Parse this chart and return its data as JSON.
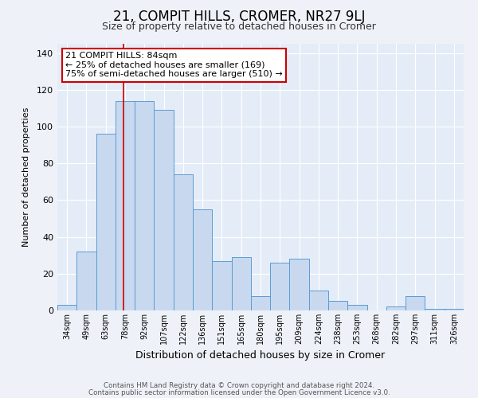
{
  "title": "21, COMPIT HILLS, CROMER, NR27 9LJ",
  "subtitle": "Size of property relative to detached houses in Cromer",
  "xlabel": "Distribution of detached houses by size in Cromer",
  "ylabel": "Number of detached properties",
  "bar_labels": [
    "34sqm",
    "49sqm",
    "63sqm",
    "78sqm",
    "92sqm",
    "107sqm",
    "122sqm",
    "136sqm",
    "151sqm",
    "165sqm",
    "180sqm",
    "195sqm",
    "209sqm",
    "224sqm",
    "238sqm",
    "253sqm",
    "268sqm",
    "282sqm",
    "297sqm",
    "311sqm",
    "326sqm"
  ],
  "bar_values": [
    3,
    32,
    96,
    114,
    114,
    109,
    74,
    55,
    27,
    29,
    8,
    26,
    28,
    11,
    5,
    3,
    0,
    2,
    8,
    1,
    1
  ],
  "bar_color": "#c8d9ef",
  "bar_edge_color": "#5b9bd5",
  "ylim": [
    0,
    145
  ],
  "yticks": [
    0,
    20,
    40,
    60,
    80,
    100,
    120,
    140
  ],
  "property_sqm": 84,
  "bin_edges": [
    34,
    49,
    63,
    78,
    92,
    107,
    122,
    136,
    151,
    165,
    180,
    195,
    209,
    224,
    238,
    253,
    268,
    282,
    297,
    311,
    326,
    341
  ],
  "property_line_color": "#cc0000",
  "annotation_text": "21 COMPIT HILLS: 84sqm\n← 25% of detached houses are smaller (169)\n75% of semi-detached houses are larger (510) →",
  "annotation_box_color": "#ffffff",
  "annotation_box_edge_color": "#cc0000",
  "footnote1": "Contains HM Land Registry data © Crown copyright and database right 2024.",
  "footnote2": "Contains public sector information licensed under the Open Government Licence v3.0.",
  "background_color": "#eef2f8",
  "plot_background_color": "#e4ecf7",
  "grid_color": "#ffffff",
  "title_fontsize": 12,
  "subtitle_fontsize": 9,
  "xlabel_fontsize": 9,
  "ylabel_fontsize": 8,
  "tick_fontsize": 7,
  "annotation_fontsize": 8
}
